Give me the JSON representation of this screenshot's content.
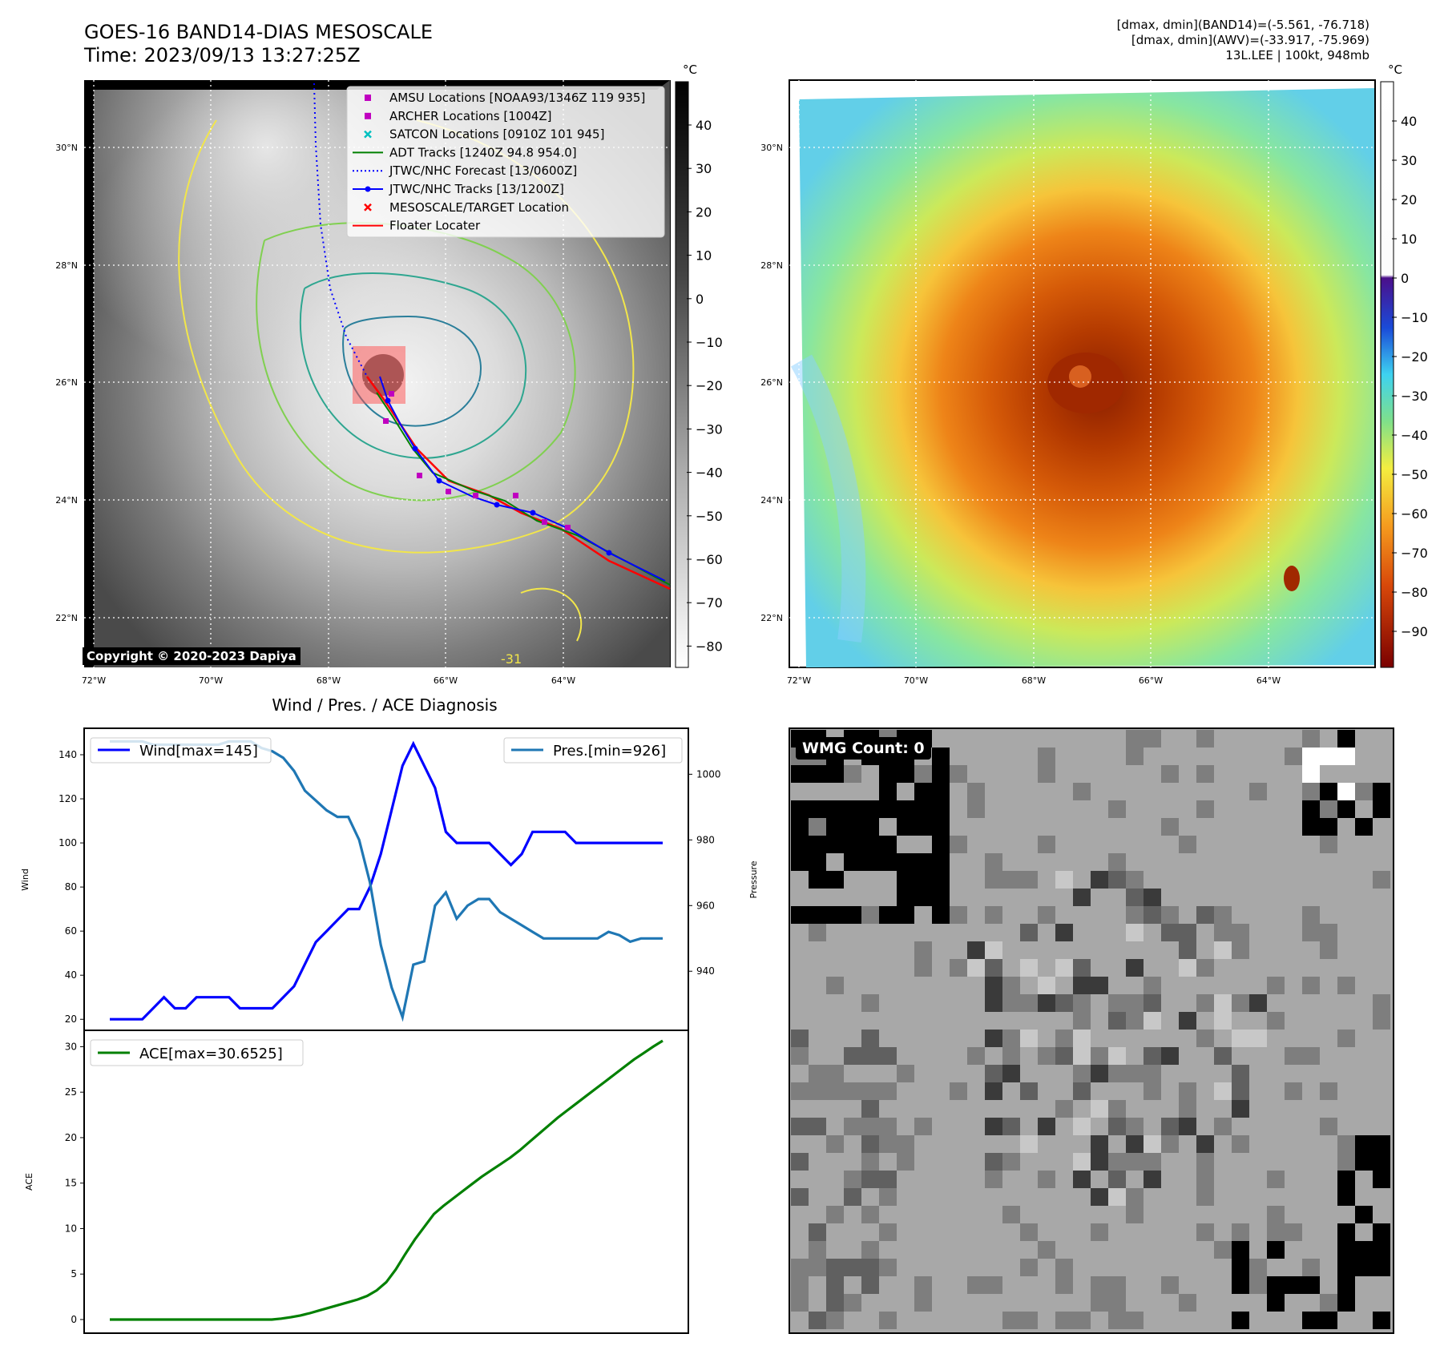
{
  "header": {
    "title_line1": "GOES-16 BAND14-DIAS MESOSCALE",
    "title_line2": "Time: 2023/09/13 13:27:25Z",
    "stats_line1": "[dmax, dmin](BAND14)=(-5.561, -76.718)",
    "stats_line2": "[dmax, dmin](AWV)=(-33.917, -75.969)",
    "stats_line3": "13L.LEE | 100kt, 948mb"
  },
  "maps": {
    "lat_labels": [
      "30°N",
      "28°N",
      "26°N",
      "24°N",
      "22°N"
    ],
    "lon_labels": [
      "72°W",
      "70°W",
      "68°W",
      "66°W",
      "64°W"
    ],
    "colorbar_unit": "°C",
    "ir_colorbar_ticks": [
      "40",
      "30",
      "20",
      "10",
      "0",
      "−10",
      "−20",
      "−30",
      "−40",
      "−50",
      "−60",
      "−70",
      "−80"
    ],
    "awv_colorbar_ticks": [
      "40",
      "30",
      "20",
      "10",
      "0",
      "−10",
      "−20",
      "−30",
      "−40",
      "−50",
      "−60",
      "−70",
      "−80",
      "−90"
    ],
    "copyright": "Copyright © 2020-2023 Dapiya",
    "contour_label": "-31",
    "legend": [
      {
        "label": "AMSU Locations [NOAA93/1346Z 119 935]",
        "color": "#c000c0",
        "marker": "square"
      },
      {
        "label": "ARCHER Locations [1004Z]",
        "color": "#c000c0",
        "marker": "square"
      },
      {
        "label": "SATCON Locations [0910Z 101 945]",
        "color": "#00c0c0",
        "marker": "x"
      },
      {
        "label": "ADT Tracks [1240Z 94.8 954.0]",
        "color": "#008000",
        "marker": "line"
      },
      {
        "label": "JTWC/NHC Forecast [13/0600Z]",
        "color": "#0000ff",
        "marker": "dotted"
      },
      {
        "label": "JTWC/NHC Tracks [13/1200Z]",
        "color": "#0000ff",
        "marker": "line-dot"
      },
      {
        "label": "MESOSCALE/TARGET Location",
        "color": "#ff0000",
        "marker": "x"
      },
      {
        "label": "Floater Locater",
        "color": "#ff0000",
        "marker": "line"
      }
    ],
    "wmg_count": "WMG Count: 0"
  },
  "chart_data": [
    {
      "type": "line",
      "title": "Wind / Pres. / ACE Diagnosis",
      "ylabel": "Wind",
      "y2label": "Pressure",
      "ylim": [
        15,
        152
      ],
      "y2lim": [
        922,
        1014
      ],
      "yticks": [
        20,
        40,
        60,
        80,
        100,
        120,
        140
      ],
      "y2ticks": [
        940,
        960,
        980,
        1000
      ],
      "legend_position": "top",
      "series": [
        {
          "name": "Wind[max=145]",
          "axis": "left",
          "color": "#0000ff",
          "values": [
            20,
            20,
            20,
            20,
            25,
            30,
            25,
            25,
            30,
            30,
            30,
            30,
            25,
            25,
            25,
            25,
            30,
            35,
            45,
            55,
            60,
            65,
            70,
            70,
            80,
            95,
            115,
            135,
            145,
            135,
            125,
            105,
            100,
            100,
            100,
            100,
            95,
            90,
            95,
            105,
            105,
            105,
            105,
            100,
            100,
            100,
            100,
            100,
            100,
            100,
            100,
            100
          ]
        },
        {
          "name": "Pres.[min=926]",
          "axis": "right",
          "color": "#1f77b4",
          "values": [
            1010,
            1010,
            1010,
            1010,
            1009,
            1009,
            1009,
            1009,
            1009,
            1009,
            1009,
            1010,
            1010,
            1010,
            1008,
            1007,
            1005,
            1001,
            995,
            992,
            989,
            987,
            987,
            980,
            967,
            948,
            935,
            926,
            942,
            943,
            960,
            964,
            956,
            960,
            962,
            962,
            958,
            956,
            954,
            952,
            950,
            950,
            950,
            950,
            950,
            950,
            952,
            951,
            949,
            950,
            950,
            950
          ]
        }
      ]
    },
    {
      "type": "line",
      "ylabel": "ACE",
      "ylim": [
        -1.5,
        31.8
      ],
      "yticks": [
        0,
        5,
        10,
        15,
        20,
        25,
        30
      ],
      "legend_position": "top-left",
      "series": [
        {
          "name": "ACE[max=30.6525]",
          "color": "#008000",
          "values": [
            0,
            0,
            0,
            0,
            0,
            0,
            0,
            0,
            0,
            0,
            0,
            0,
            0,
            0,
            0,
            0,
            0,
            0,
            0.1,
            0.25,
            0.45,
            0.7,
            1.0,
            1.3,
            1.6,
            1.9,
            2.2,
            2.6,
            3.2,
            4.1,
            5.5,
            7.2,
            8.8,
            10.2,
            11.6,
            12.5,
            13.3,
            14.1,
            14.9,
            15.7,
            16.4,
            17.1,
            17.8,
            18.6,
            19.5,
            20.4,
            21.3,
            22.2,
            23.0,
            23.8,
            24.6,
            25.4,
            26.2,
            27.0,
            27.8,
            28.6,
            29.3,
            30.0,
            30.6525
          ]
        }
      ]
    }
  ]
}
